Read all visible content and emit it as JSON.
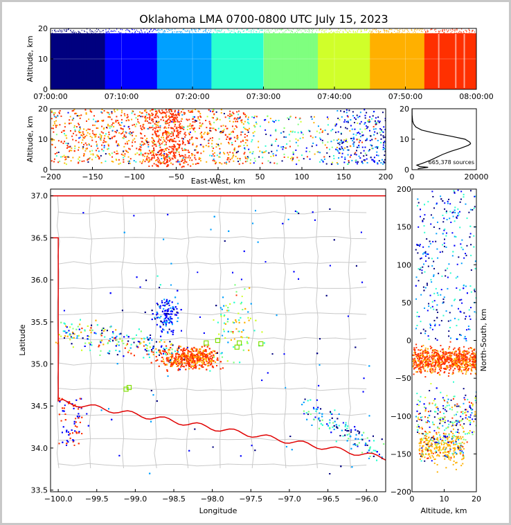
{
  "chart_data": {
    "type": "scatter",
    "title": "Oklahoma LMA 0700-0800 UTC July 15, 2023",
    "colormap": [
      "#00007f",
      "#0000ff",
      "#00a0ff",
      "#2affd0",
      "#7fff7f",
      "#d0ff2a",
      "#ffb000",
      "#ff3000",
      "#8b0000"
    ],
    "panels": {
      "time_height": {
        "xlabel": "",
        "ylabel": "Altitude, km",
        "ylim": [
          0,
          20
        ],
        "xticks": [
          "07:00:00",
          "07:10:00",
          "07:20:00",
          "07:30:00",
          "07:40:00",
          "07:50:00",
          "08:00:00"
        ],
        "yticks": [
          "0",
          "10",
          "20"
        ]
      },
      "east_west_altitude": {
        "xlabel": "East-West, km",
        "ylabel": "Altitude, km",
        "xlim": [
          -200,
          200
        ],
        "ylim": [
          0,
          20
        ],
        "xticks": [
          "−200",
          "−150",
          "−100",
          "−50",
          "0",
          "50",
          "100",
          "150",
          "200"
        ],
        "yticks": [
          "0",
          "10",
          "20"
        ]
      },
      "altitude_histogram": {
        "annotation": "665,378 sources",
        "xlim": [
          0,
          20000
        ],
        "ylim": [
          0,
          20
        ],
        "xticks": [
          "0",
          "20000"
        ],
        "yticks": [
          "0",
          "10",
          "20"
        ],
        "profile": [
          [
            0.3,
            1800
          ],
          [
            0.8,
            5000
          ],
          [
            1.0,
            2500
          ],
          [
            1.5,
            1500
          ],
          [
            2.0,
            3000
          ],
          [
            3.0,
            5500
          ],
          [
            4.0,
            7500
          ],
          [
            5.0,
            9500
          ],
          [
            6.0,
            12000
          ],
          [
            7.0,
            15000
          ],
          [
            8.0,
            17500
          ],
          [
            8.5,
            18200
          ],
          [
            9.0,
            18000
          ],
          [
            10.0,
            16500
          ],
          [
            11.0,
            12000
          ],
          [
            12.0,
            7000
          ],
          [
            13.0,
            3000
          ],
          [
            14.0,
            1200
          ],
          [
            15.0,
            500
          ],
          [
            16.0,
            200
          ],
          [
            18.0,
            50
          ],
          [
            20.0,
            20
          ]
        ]
      },
      "plan_view": {
        "xlabel": "Longitude",
        "ylabel": "Latitude",
        "xlim": [
          -100.1,
          -95.75
        ],
        "ylim": [
          33.48,
          37.08
        ],
        "xticks": [
          "−100.0",
          "−99.5",
          "−99.0",
          "−98.5",
          "−98.0",
          "−97.5",
          "−97.0",
          "−96.5",
          "−96.0"
        ],
        "yticks": [
          "33.5",
          "34.0",
          "34.5",
          "35.0",
          "35.5",
          "36.0",
          "36.5",
          "37.0"
        ],
        "stations": [
          [
            -98.08,
            35.25
          ],
          [
            -97.93,
            35.28
          ],
          [
            -97.65,
            35.25
          ],
          [
            -97.37,
            35.24
          ],
          [
            -97.68,
            35.2
          ],
          [
            -99.08,
            34.72
          ],
          [
            -99.12,
            34.7
          ]
        ]
      },
      "altitude_north_south": {
        "xlabel": "Altitude, km",
        "ylabel": "North-South, km",
        "xlim": [
          0,
          20
        ],
        "ylim": [
          -200,
          200
        ],
        "xticks": [
          "0",
          "10",
          "20"
        ],
        "yticks": [
          "−200",
          "−150",
          "−100",
          "−50",
          "0",
          "50",
          "100",
          "150",
          "200"
        ]
      }
    }
  }
}
